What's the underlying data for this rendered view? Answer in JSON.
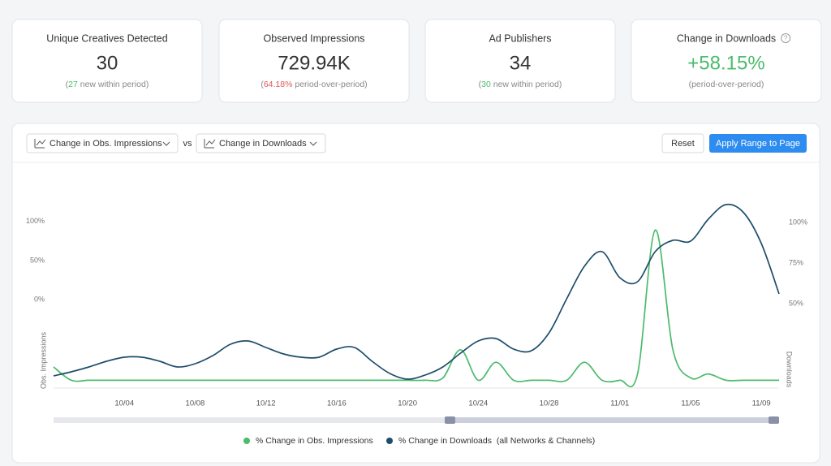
{
  "cards": [
    {
      "title": "Unique Creatives Detected",
      "value": "30",
      "note": [
        {
          "text": "("
        },
        {
          "text": "27",
          "color": "#4cbb6c"
        },
        {
          "text": " new within period)"
        }
      ]
    },
    {
      "title": "Observed Impressions",
      "value": "729.94K",
      "note": [
        {
          "text": "("
        },
        {
          "text": "64.18%",
          "color": "#e05555"
        },
        {
          "text": " period-over-period)"
        }
      ]
    },
    {
      "title": "Ad Publishers",
      "value": "34",
      "note": [
        {
          "text": "("
        },
        {
          "text": "30",
          "color": "#4cbb6c"
        },
        {
          "text": " new within period)"
        }
      ]
    },
    {
      "title": "Change in Downloads",
      "value": "+58.15%",
      "value_color": "#4cbb6c",
      "note": [
        {
          "text": "(period-over-period)"
        }
      ]
    }
  ],
  "controls": {
    "metric_a": "Change in Obs. Impressions",
    "vs": "vs",
    "metric_b": "Change in Downloads",
    "reset": "Reset",
    "apply": "Apply Range to Page"
  },
  "chart_data": {
    "type": "line",
    "categories": [
      null,
      null,
      null,
      null,
      "10/04",
      null,
      null,
      null,
      "10/08",
      null,
      null,
      null,
      "10/12",
      null,
      null,
      null,
      "10/16",
      null,
      null,
      null,
      "10/20",
      null,
      null,
      null,
      "10/24",
      null,
      null,
      null,
      "10/28",
      null,
      null,
      null,
      "11/01",
      null,
      null,
      null,
      "11/05",
      null,
      null,
      null,
      "11/09",
      null
    ],
    "ylabel": "Obs. Impressions",
    "y2label": "Downloads",
    "ylim": [
      -113,
      160
    ],
    "yticks": [
      {
        "value": 0,
        "label": "0%"
      },
      {
        "value": 50,
        "label": "50%"
      },
      {
        "value": 100,
        "label": "100%"
      }
    ],
    "y2lim": [
      -2,
      129.5
    ],
    "y2ticks": [
      {
        "value": 50,
        "label": "50%"
      },
      {
        "value": 75,
        "label": "75%"
      },
      {
        "value": 100,
        "label": "100%"
      }
    ],
    "series": [
      {
        "name": "% Change in Obs. Impressions",
        "color": "#4cbb6c",
        "values": [
          -86,
          -103,
          -103,
          -103,
          -103,
          -103,
          -103,
          -103,
          -103,
          -103,
          -103,
          -103,
          -103,
          -103,
          -103,
          -103,
          -103,
          -103,
          -103,
          -103,
          -103,
          -103,
          -100,
          -64,
          -103,
          -80,
          -103,
          -103,
          -103,
          -103,
          -80,
          -103,
          -103,
          -95,
          89,
          -64,
          -100,
          -95,
          -103,
          -103,
          -103,
          -103
        ]
      },
      {
        "name": "% Change in Downloads  (all Networks & Channels)",
        "color": "#1e4d6b",
        "axis": "y2",
        "values": [
          5.5,
          8,
          11,
          14.5,
          17,
          17,
          14.5,
          11,
          13,
          18,
          25,
          27,
          23,
          19,
          17,
          17,
          22,
          23,
          14.5,
          7,
          3.5,
          6,
          11,
          19.5,
          27,
          28.5,
          22,
          21,
          32,
          53,
          73,
          82,
          66,
          63.5,
          82,
          89,
          88.5,
          102,
          111,
          106,
          87,
          56
        ]
      }
    ]
  }
}
